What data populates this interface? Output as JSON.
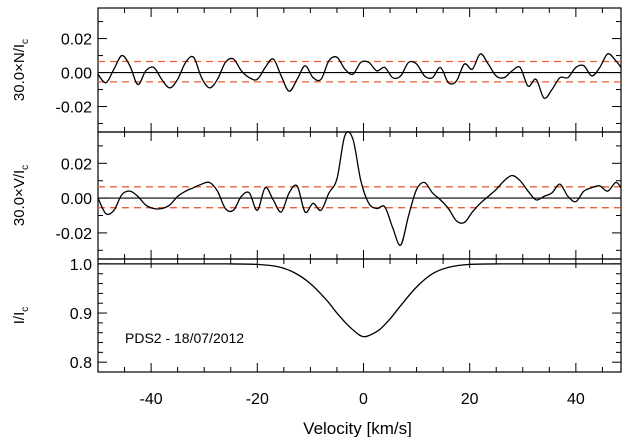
{
  "chart_data": [
    {
      "type": "line",
      "panel": "N",
      "ylabel": "30.0×N/I",
      "ylabel_sub": "c",
      "xlim": [
        -50,
        48.5
      ],
      "ylim": [
        -0.035,
        0.038
      ],
      "yticks": [
        -0.02,
        0.0,
        0.02
      ],
      "ytick_labels": [
        "-0.02",
        "0.00",
        "0.02"
      ],
      "reference_lines": [
        {
          "y": 0.0,
          "style": "solid",
          "color": "#000000"
        },
        {
          "y": 0.0065,
          "style": "dashed",
          "color": "#e8603c"
        },
        {
          "y": -0.0055,
          "style": "dashed",
          "color": "#e8603c"
        }
      ],
      "series": [
        {
          "color": "#000000",
          "x": [
            -50,
            -48.5,
            -47,
            -45.5,
            -44,
            -42.5,
            -41,
            -39.5,
            -38,
            -36.5,
            -35,
            -33.5,
            -32,
            -30.5,
            -29,
            -27.5,
            -26,
            -24.5,
            -23,
            -21.5,
            -20,
            -18.5,
            -17,
            -15.5,
            -14,
            -12.5,
            -11,
            -9.5,
            -8,
            -6.5,
            -5,
            -3.5,
            -2,
            -0.5,
            1,
            2.5,
            4,
            5.5,
            7,
            8.5,
            10,
            11.5,
            13,
            14.5,
            16,
            17.5,
            19,
            20.5,
            22,
            23.5,
            25,
            26.5,
            28,
            29.5,
            31,
            32.5,
            34,
            35.5,
            37,
            38.5,
            40,
            41.5,
            43,
            44.5,
            46,
            47.5,
            48.5
          ],
          "y": [
            -0.001,
            -0.006,
            0.002,
            0.01,
            0.004,
            -0.007,
            0.001,
            0.003,
            -0.004,
            -0.009,
            -0.004,
            0.006,
            0.009,
            -0.003,
            -0.009,
            -0.004,
            0.006,
            0.008,
            0.001,
            -0.003,
            -0.004,
            0.003,
            0.008,
            -0.002,
            -0.011,
            -0.004,
            0.004,
            -0.003,
            -0.004,
            0.007,
            0.009,
            0.002,
            -0.001,
            0.006,
            0.006,
            0.001,
            0.003,
            -0.003,
            -0.002,
            0.006,
            0.005,
            -0.002,
            -0.003,
            0.003,
            -0.006,
            -0.005,
            0.005,
            0.002,
            0.011,
            0.005,
            -0.002,
            -0.003,
            0.001,
            0.003,
            -0.008,
            -0.004,
            -0.015,
            -0.01,
            -0.003,
            -0.003,
            0.003,
            0.004,
            -0.002,
            0.003,
            0.011,
            0.007,
            0.003
          ]
        }
      ]
    },
    {
      "type": "line",
      "panel": "V",
      "ylabel": "30.0×V/I",
      "ylabel_sub": "c",
      "xlim": [
        -50,
        48.5
      ],
      "ylim": [
        -0.035,
        0.038
      ],
      "yticks": [
        -0.02,
        0.0,
        0.02
      ],
      "ytick_labels": [
        "-0.02",
        "0.00",
        "0.02"
      ],
      "reference_lines": [
        {
          "y": 0.0,
          "style": "solid",
          "color": "#000000"
        },
        {
          "y": 0.0065,
          "style": "dashed",
          "color": "#e8603c"
        },
        {
          "y": -0.0055,
          "style": "dashed",
          "color": "#e8603c"
        }
      ],
      "series": [
        {
          "color": "#000000",
          "x": [
            -50,
            -48.5,
            -47,
            -45.5,
            -44,
            -42.5,
            -41,
            -39.5,
            -38,
            -36.5,
            -35,
            -33.5,
            -32,
            -30.5,
            -29,
            -27.5,
            -26,
            -24.5,
            -23,
            -21.5,
            -20,
            -18.5,
            -17,
            -15.5,
            -14,
            -12.5,
            -11,
            -9.5,
            -8,
            -6.5,
            -5,
            -3.5,
            -2,
            -0.5,
            1,
            2.5,
            4,
            5.5,
            7,
            8.5,
            10,
            11.5,
            13,
            14.5,
            16,
            17.5,
            19,
            20.5,
            22,
            23.5,
            25,
            26.5,
            28,
            29.5,
            31,
            32.5,
            34,
            35.5,
            37,
            38.5,
            40,
            41.5,
            43,
            44.5,
            46,
            47.5,
            48.5
          ],
          "y": [
            0.0,
            -0.009,
            -0.007,
            0.002,
            0.004,
            0.001,
            -0.004,
            -0.006,
            -0.006,
            -0.004,
            0.001,
            0.004,
            0.006,
            0.008,
            0.009,
            0.004,
            -0.006,
            -0.007,
            0.001,
            0.003,
            -0.007,
            0.006,
            -0.001,
            -0.008,
            0.003,
            0.007,
            -0.008,
            -0.003,
            -0.007,
            0.003,
            0.011,
            0.036,
            0.034,
            0.01,
            -0.003,
            -0.006,
            -0.005,
            -0.017,
            -0.027,
            -0.01,
            0.005,
            0.009,
            0.003,
            -0.001,
            -0.006,
            -0.013,
            -0.014,
            -0.008,
            -0.003,
            0.001,
            0.005,
            0.01,
            0.013,
            0.01,
            0.004,
            -0.001,
            0.001,
            0.003,
            0.008,
            0.001,
            -0.002,
            0.004,
            0.006,
            0.007,
            0.004,
            0.009,
            0.006
          ]
        }
      ]
    },
    {
      "type": "line",
      "panel": "I",
      "ylabel": "I/I",
      "ylabel_sub": "c",
      "xlabel": "Velocity [km/s]",
      "xlim": [
        -50,
        48.5
      ],
      "xticks": [
        -40,
        -20,
        0,
        20,
        40
      ],
      "xtick_labels": [
        "-40",
        "-20",
        "0",
        "20",
        "40"
      ],
      "ylim": [
        0.78,
        1.01
      ],
      "yticks": [
        0.8,
        0.9,
        1.0
      ],
      "ytick_labels": [
        "0.8",
        "0.9",
        "1.0"
      ],
      "annotation": "PDS2 - 18/07/2012",
      "series": [
        {
          "color": "#000000",
          "x": [
            -50,
            -44,
            -38,
            -32,
            -26,
            -20,
            -16,
            -13,
            -10,
            -7,
            -5,
            -3,
            -1,
            0,
            1,
            3,
            5,
            7,
            10,
            13,
            16,
            20,
            26,
            32,
            38,
            44,
            48.5
          ],
          "y": [
            1.0,
            1.0,
            1.0,
            1.0,
            1.0,
            0.999,
            0.994,
            0.982,
            0.96,
            0.927,
            0.9,
            0.876,
            0.857,
            0.852,
            0.854,
            0.866,
            0.888,
            0.915,
            0.953,
            0.98,
            0.993,
            0.999,
            1.0,
            1.0,
            1.0,
            1.0,
            1.0
          ]
        }
      ]
    }
  ]
}
